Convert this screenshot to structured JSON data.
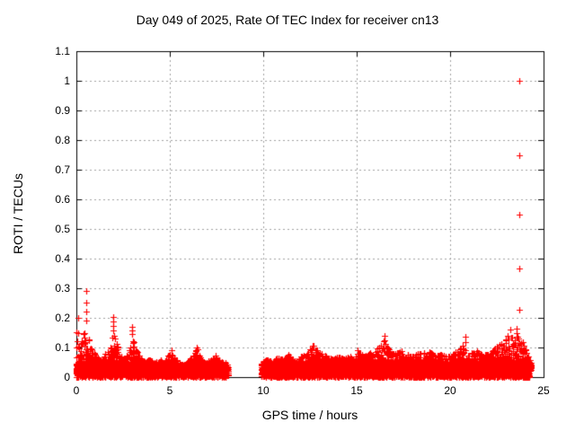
{
  "page": {
    "background": "#ffffff",
    "text_color": "#000000"
  },
  "chart_data": {
    "type": "scatter",
    "title": "Day 049 of 2025, Rate Of TEC Index for receiver cn13",
    "xlabel": "GPS time / hours",
    "ylabel": "ROTI / TECUs",
    "xlim": [
      0,
      25
    ],
    "ylim": [
      0,
      1.1
    ],
    "xticks": {
      "values": [
        0,
        5,
        10,
        15,
        20,
        25
      ],
      "labels": [
        "0",
        "5",
        "10",
        "15",
        "20",
        "25"
      ]
    },
    "yticks": {
      "values": [
        0,
        0.1,
        0.2,
        0.3,
        0.4,
        0.5,
        0.6,
        0.7,
        0.8,
        0.9,
        1.0,
        1.1
      ],
      "labels": [
        "0",
        "0.1",
        "0.2",
        "0.3",
        "0.4",
        "0.5",
        "0.6",
        "0.7",
        "0.8",
        "0.9",
        "1",
        "1.1"
      ]
    },
    "grid": {
      "show": true,
      "color": "#a0a0a0",
      "dash": [
        2,
        3
      ]
    },
    "border_color": "#000000",
    "legend": "none",
    "marker": {
      "shape": "plus",
      "color": "#ff0000",
      "size": 7,
      "stroke": 1.2
    },
    "data_gap_hours": [
      8.15,
      9.9
    ],
    "series": [
      {
        "name": "ROTI",
        "band_segments": [
          {
            "x_start": 0.0,
            "x_end": 8.15,
            "envelope": [
              [
                0.0,
                0.2
              ],
              [
                0.1,
                0.15
              ],
              [
                0.25,
                0.12
              ],
              [
                0.4,
                0.15
              ],
              [
                0.55,
                0.17
              ],
              [
                0.7,
                0.12
              ],
              [
                0.85,
                0.09
              ],
              [
                1.0,
                0.08
              ],
              [
                1.2,
                0.06
              ],
              [
                1.4,
                0.06
              ],
              [
                1.6,
                0.09
              ],
              [
                1.75,
                0.08
              ],
              [
                1.9,
                0.13
              ],
              [
                2.0,
                0.15
              ],
              [
                2.15,
                0.12
              ],
              [
                2.3,
                0.08
              ],
              [
                2.5,
                0.06
              ],
              [
                2.7,
                0.08
              ],
              [
                2.85,
                0.1
              ],
              [
                3.0,
                0.13
              ],
              [
                3.15,
                0.11
              ],
              [
                3.3,
                0.08
              ],
              [
                3.5,
                0.06
              ],
              [
                3.7,
                0.05
              ],
              [
                3.9,
                0.06
              ],
              [
                4.1,
                0.05
              ],
              [
                4.3,
                0.05
              ],
              [
                4.5,
                0.06
              ],
              [
                4.7,
                0.05
              ],
              [
                4.9,
                0.07
              ],
              [
                5.1,
                0.09
              ],
              [
                5.3,
                0.06
              ],
              [
                5.5,
                0.05
              ],
              [
                5.7,
                0.04
              ],
              [
                5.9,
                0.05
              ],
              [
                6.1,
                0.06
              ],
              [
                6.3,
                0.08
              ],
              [
                6.45,
                0.1
              ],
              [
                6.6,
                0.07
              ],
              [
                6.8,
                0.05
              ],
              [
                7.0,
                0.05
              ],
              [
                7.2,
                0.06
              ],
              [
                7.4,
                0.07
              ],
              [
                7.6,
                0.06
              ],
              [
                7.8,
                0.05
              ],
              [
                8.0,
                0.05
              ],
              [
                8.15,
                0.04
              ]
            ]
          },
          {
            "x_start": 9.9,
            "x_end": 24.3,
            "envelope": [
              [
                9.9,
                0.05
              ],
              [
                10.2,
                0.06
              ],
              [
                10.5,
                0.05
              ],
              [
                10.8,
                0.07
              ],
              [
                11.1,
                0.06
              ],
              [
                11.4,
                0.08
              ],
              [
                11.7,
                0.06
              ],
              [
                12.0,
                0.07
              ],
              [
                12.3,
                0.08
              ],
              [
                12.55,
                0.1
              ],
              [
                12.7,
                0.11
              ],
              [
                12.9,
                0.09
              ],
              [
                13.1,
                0.08
              ],
              [
                13.4,
                0.07
              ],
              [
                13.7,
                0.06
              ],
              [
                14.0,
                0.07
              ],
              [
                14.3,
                0.06
              ],
              [
                14.6,
                0.07
              ],
              [
                14.9,
                0.08
              ],
              [
                15.1,
                0.09
              ],
              [
                15.4,
                0.07
              ],
              [
                15.7,
                0.08
              ],
              [
                16.0,
                0.09
              ],
              [
                16.3,
                0.11
              ],
              [
                16.5,
                0.13
              ],
              [
                16.7,
                0.1
              ],
              [
                16.9,
                0.08
              ],
              [
                17.1,
                0.08
              ],
              [
                17.35,
                0.09
              ],
              [
                17.5,
                0.1
              ],
              [
                17.7,
                0.08
              ],
              [
                18.0,
                0.07
              ],
              [
                18.3,
                0.08
              ],
              [
                18.6,
                0.08
              ],
              [
                18.9,
                0.09
              ],
              [
                19.2,
                0.07
              ],
              [
                19.5,
                0.08
              ],
              [
                19.8,
                0.07
              ],
              [
                20.1,
                0.08
              ],
              [
                20.4,
                0.09
              ],
              [
                20.7,
                0.11
              ],
              [
                20.9,
                0.09
              ],
              [
                21.2,
                0.08
              ],
              [
                21.5,
                0.09
              ],
              [
                21.8,
                0.08
              ],
              [
                22.1,
                0.08
              ],
              [
                22.4,
                0.1
              ],
              [
                22.7,
                0.11
              ],
              [
                23.0,
                0.13
              ],
              [
                23.2,
                0.15
              ],
              [
                23.4,
                0.12
              ],
              [
                23.55,
                0.14
              ],
              [
                23.7,
                0.13
              ],
              [
                23.9,
                0.12
              ],
              [
                24.1,
                0.09
              ],
              [
                24.3,
                0.05
              ]
            ]
          }
        ],
        "peak_points": [
          {
            "x": 0.08,
            "y": [
              0.2
            ]
          },
          {
            "x": 0.55,
            "y": [
              0.29,
              0.252,
              0.221,
              0.192
            ]
          },
          {
            "x": 1.95,
            "y": [
              0.203,
              0.188,
              0.172,
              0.158
            ]
          },
          {
            "x": 3.0,
            "y": [
              0.17,
              0.157,
              0.144
            ]
          },
          {
            "x": 5.1,
            "y": [
              0.092
            ]
          },
          {
            "x": 6.45,
            "y": [
              0.101
            ]
          },
          {
            "x": 7.45,
            "y": [
              0.072
            ]
          },
          {
            "x": 12.7,
            "y": [
              0.106
            ]
          },
          {
            "x": 15.05,
            "y": [
              0.09
            ]
          },
          {
            "x": 16.5,
            "y": [
              0.138,
              0.125
            ]
          },
          {
            "x": 20.8,
            "y": [
              0.136,
              0.118
            ]
          },
          {
            "x": 23.2,
            "y": [
              0.16
            ]
          },
          {
            "x": 23.55,
            "y": [
              0.165,
              0.15
            ]
          },
          {
            "x": 23.68,
            "y": [
              1.0,
              0.748,
              0.55,
              0.368,
              0.227
            ]
          }
        ]
      }
    ]
  }
}
